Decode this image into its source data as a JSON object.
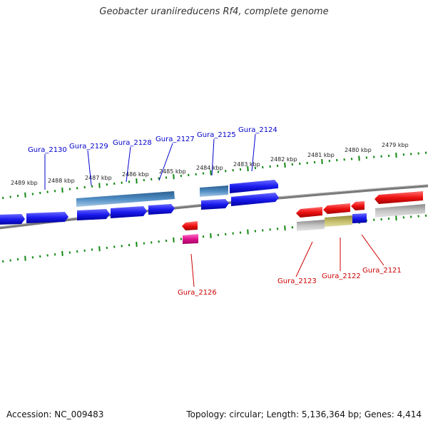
{
  "title": "Geobacter uraniireducens Rf4, complete genome",
  "footer": {
    "accession": "Accession: NC_009483",
    "stats": "Topology: circular; Length: 5,136,364 bp; Genes: 4,414"
  },
  "ruler": {
    "ticks": [
      "2489 kbp",
      "2488 kbp",
      "2487 kbp",
      "2486 kbp",
      "2485 kbp",
      "2484 kbp",
      "2483 kbp",
      "2482 kbp",
      "2481 kbp",
      "2480 kbp",
      "2479 kbp"
    ]
  },
  "genes": {
    "forward_strand": [
      "Gura_2130",
      "Gura_2129",
      "Gura_2128",
      "Gura_2127",
      "Gura_2125",
      "Gura_2124"
    ],
    "reverse_strand": [
      "Gura_2126",
      "Gura_2123",
      "Gura_2122",
      "Gura_2121"
    ]
  },
  "colors": {
    "forward_label": "#0000cc",
    "reverse_label": "#cc0000",
    "blue_gene": "#1a1aee",
    "red_gene": "#ee1111",
    "backbone": "#808080",
    "ticks": "#118811"
  }
}
